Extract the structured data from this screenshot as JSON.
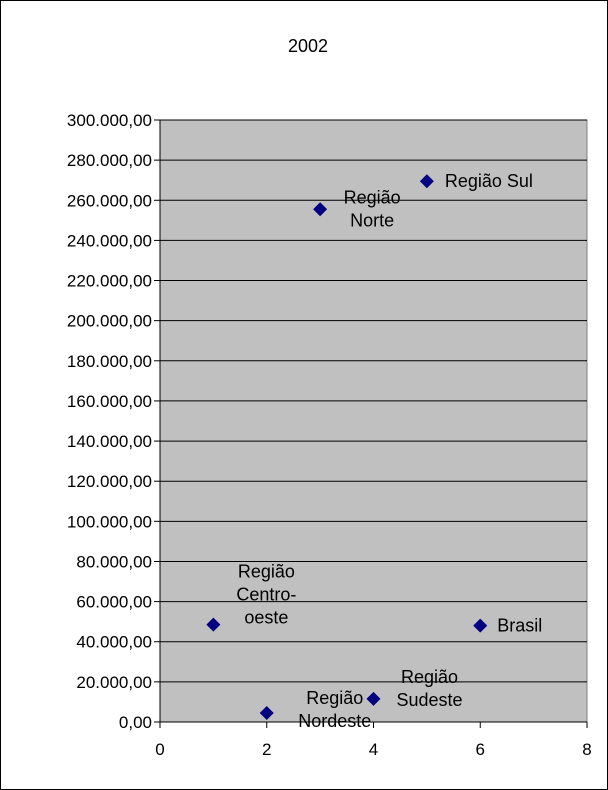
{
  "chart_data": {
    "type": "scatter",
    "title": "2002",
    "xlabel": "",
    "ylabel": "",
    "xlim": [
      0,
      8
    ],
    "ylim": [
      0,
      300000
    ],
    "x_ticks": [
      "0",
      "2",
      "4",
      "6",
      "8"
    ],
    "y_ticks": [
      "0,00",
      "20.000,00",
      "40.000,00",
      "60.000,00",
      "80.000,00",
      "100.000,00",
      "120.000,00",
      "140.000,00",
      "160.000,00",
      "180.000,00",
      "200.000,00",
      "220.000,00",
      "240.000,00",
      "260.000,00",
      "280.000,00",
      "300.000,00"
    ],
    "points": [
      {
        "label": "Região Centro-oeste",
        "label_lines": [
          "Região",
          "Centro-",
          "oeste"
        ],
        "x": 1,
        "y": 48500
      },
      {
        "label": "Região Nordeste",
        "label_lines": [
          "Região",
          "Nordeste"
        ],
        "x": 2,
        "y": 4500
      },
      {
        "label": "Região Norte",
        "label_lines": [
          "Região",
          "Norte"
        ],
        "x": 3,
        "y": 255500
      },
      {
        "label": "Região Sudeste",
        "label_lines": [
          "Região",
          "Sudeste"
        ],
        "x": 4,
        "y": 11500
      },
      {
        "label": "Região Sul",
        "label_lines": [
          "Região Sul"
        ],
        "x": 5,
        "y": 269500
      },
      {
        "label": "Brasil",
        "label_lines": [
          "Brasil"
        ],
        "x": 6,
        "y": 48000
      }
    ],
    "grid": true,
    "legend": "none",
    "colors": {
      "marker": "#000080",
      "plot_bg": "#c0c0c0",
      "grid": "#000000"
    }
  }
}
